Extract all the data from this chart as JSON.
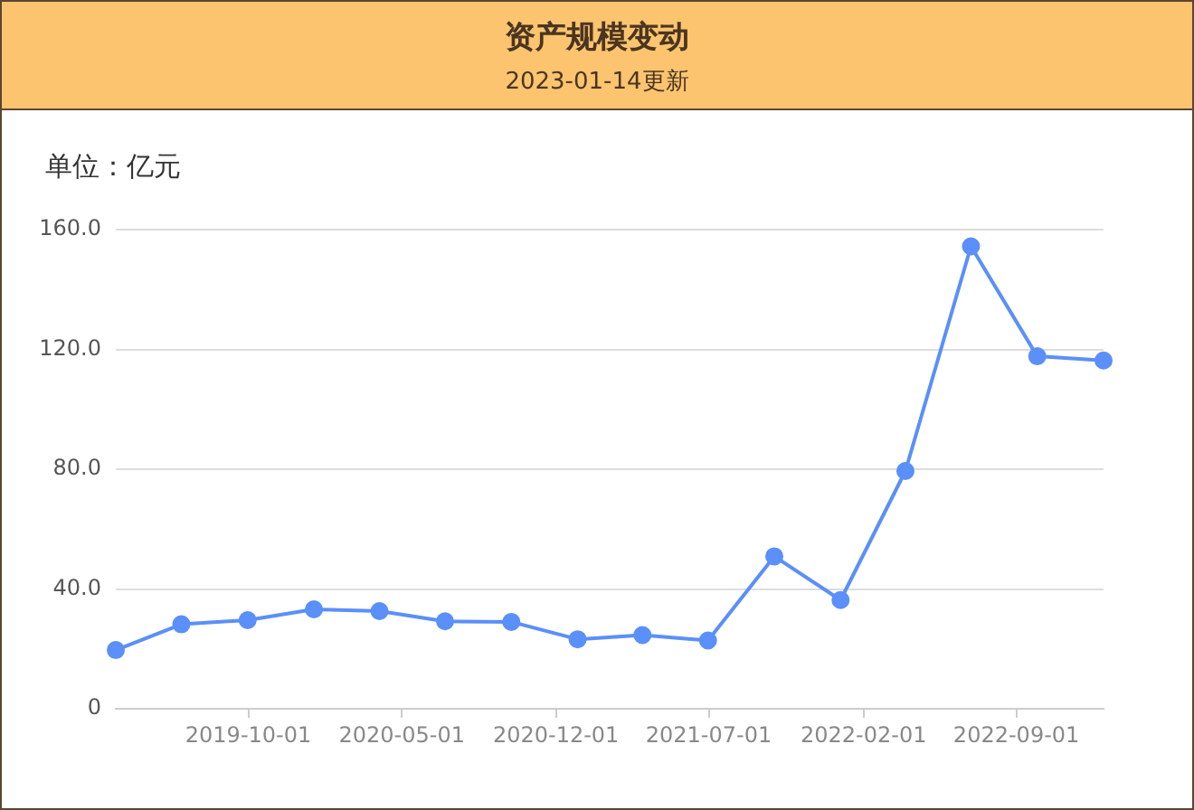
{
  "chart_data": {
    "type": "line",
    "title": "资产规模变动",
    "subtitle": "2023-01-14更新",
    "ylabel": "单位：亿元",
    "x": [
      "2019-03-31",
      "2019-06-30",
      "2019-09-30",
      "2019-12-31",
      "2020-03-31",
      "2020-06-30",
      "2020-09-30",
      "2020-12-31",
      "2021-03-31",
      "2021-06-30",
      "2021-09-30",
      "2021-12-31",
      "2022-03-31",
      "2022-06-30",
      "2022-09-30",
      "2022-12-31"
    ],
    "series": [
      {
        "color": "#5b8ff9",
        "values": [
          19.6,
          28.2,
          29.6,
          33.2,
          32.6,
          29.2,
          29.0,
          23.2,
          24.6,
          22.8,
          50.9,
          36.3,
          79.4,
          154.4,
          117.7,
          116.3
        ]
      }
    ],
    "xlim": [
      "2019-03-31",
      "2022-12-31"
    ],
    "xticks": [
      "2019-10-01",
      "2020-05-01",
      "2020-12-01",
      "2021-07-01",
      "2022-02-01",
      "2022-09-01"
    ],
    "ylim": [
      0,
      160
    ],
    "yticks": [
      0,
      {
        "value": 40,
        "label": "40.0"
      },
      {
        "value": 80,
        "label": "80.0"
      },
      {
        "value": 120,
        "label": "120.0"
      },
      {
        "value": 160,
        "label": "160.0"
      }
    ],
    "grid": "y",
    "legend": false,
    "marker": "circle",
    "line_style": "solid"
  }
}
